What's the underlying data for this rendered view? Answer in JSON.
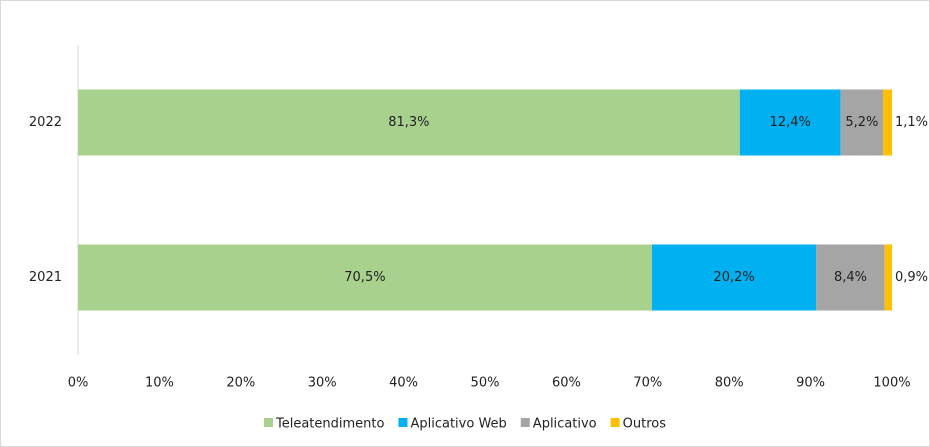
{
  "chart_data": {
    "type": "stacked_barh",
    "categories": [
      "2022",
      "2021"
    ],
    "series": [
      {
        "name": "Teleatendimento",
        "color": "#a9d18e",
        "values": [
          81.3,
          70.5
        ],
        "value_labels": [
          "81,3%",
          "70,5%"
        ]
      },
      {
        "name": "Aplicativo Web",
        "color": "#00b0f0",
        "values": [
          12.4,
          20.2
        ],
        "value_labels": [
          "12,4%",
          "20,2%"
        ]
      },
      {
        "name": "Aplicativo",
        "color": "#a5a5a5",
        "values": [
          5.2,
          8.4
        ],
        "value_labels": [
          "5,2%",
          "8,4%"
        ]
      },
      {
        "name": "Outros",
        "color": "#ffc000",
        "values": [
          1.1,
          0.9
        ],
        "value_labels": [
          "1,1%",
          "0,9%"
        ]
      }
    ],
    "xlim": [
      0,
      100
    ],
    "xticks": [
      {
        "value": 0,
        "label": "0%"
      },
      {
        "value": 10,
        "label": "10%"
      },
      {
        "value": 20,
        "label": "20%"
      },
      {
        "value": 30,
        "label": "30%"
      },
      {
        "value": 40,
        "label": "40%"
      },
      {
        "value": 50,
        "label": "50%"
      },
      {
        "value": 60,
        "label": "60%"
      },
      {
        "value": 70,
        "label": "70%"
      },
      {
        "value": 80,
        "label": "80%"
      },
      {
        "value": 90,
        "label": "90%"
      },
      {
        "value": 100,
        "label": "100%"
      }
    ],
    "legend": "bottom",
    "grid": false
  }
}
